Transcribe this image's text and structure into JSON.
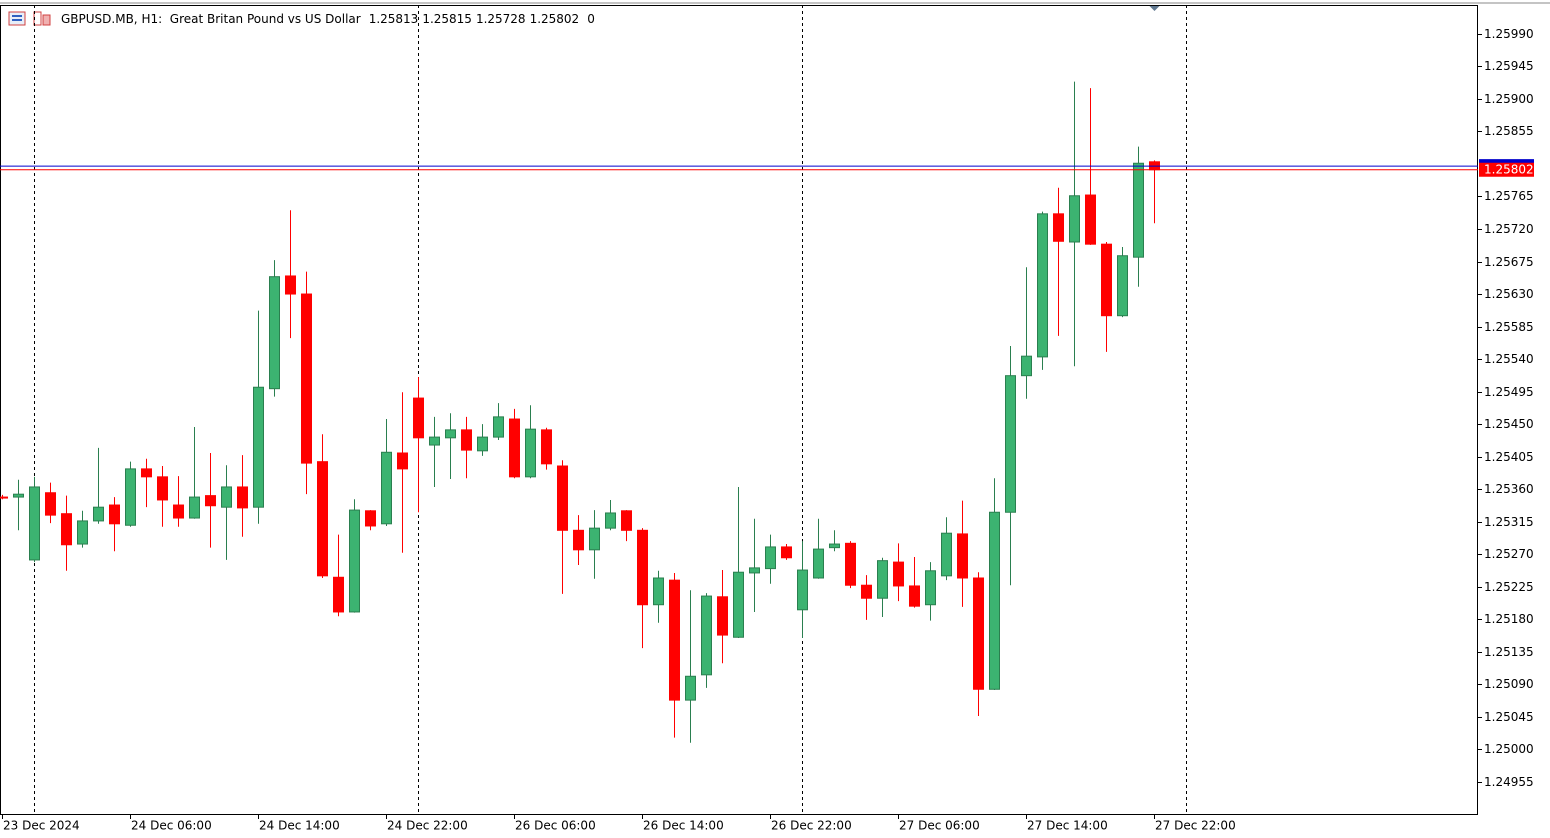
{
  "chart_data": {
    "type": "candlestick",
    "title": "GBPUSD.MB, H1:  Great Britan Pound vs US Dollar",
    "spread": 0,
    "categories": [
      "23 Dec 2024",
      null,
      null,
      null,
      null,
      null,
      null,
      null,
      "24 Dec 06:00",
      null,
      null,
      null,
      null,
      null,
      null,
      null,
      "24 Dec 14:00",
      null,
      null,
      null,
      null,
      null,
      null,
      null,
      "24 Dec 22:00",
      null,
      null,
      null,
      null,
      null,
      null,
      null,
      "26 Dec 06:00",
      null,
      null,
      null,
      null,
      null,
      null,
      null,
      "26 Dec 14:00",
      null,
      null,
      null,
      null,
      null,
      null,
      null,
      "26 Dec 22:00",
      null,
      null,
      null,
      null,
      null,
      null,
      null,
      "27 Dec 06:00",
      null,
      null,
      null,
      null,
      null,
      null,
      null,
      "27 Dec 14:00",
      null,
      null,
      null,
      null,
      null,
      null,
      null,
      "27 Dec 22:00"
    ],
    "open": [
      1.25349,
      1.25349,
      1.25262,
      1.25355,
      1.25326,
      1.25284,
      1.25316,
      1.25338,
      1.2531,
      1.25388,
      1.25377,
      1.25338,
      1.2532,
      1.25351,
      1.25335,
      1.25363,
      1.25335,
      1.25499,
      1.25655,
      1.2563,
      1.25398,
      1.25238,
      1.2519,
      1.2533,
      1.25312,
      1.2541,
      1.25486,
      1.25421,
      1.25431,
      1.25442,
      1.25413,
      1.25432,
      1.25457,
      1.25377,
      1.25442,
      1.25392,
      1.25303,
      1.25276,
      1.25306,
      1.2533,
      1.25303,
      1.252,
      1.25234,
      1.25068,
      1.25103,
      1.25211,
      1.25155,
      1.25244,
      1.2525,
      1.2528,
      1.25193,
      1.25237,
      1.25279,
      1.25285,
      1.25227,
      1.25209,
      1.25259,
      1.25226,
      1.252,
      1.2524,
      1.25298,
      1.25237,
      1.25083,
      1.25328,
      1.25517,
      1.25543,
      1.25741,
      1.25702,
      1.25767,
      1.25699,
      1.256,
      1.25681,
      1.25813
    ],
    "high": [
      1.25352,
      1.25373,
      1.25377,
      1.25369,
      1.25351,
      1.2533,
      1.25417,
      1.25349,
      1.25398,
      1.25402,
      1.25392,
      1.25378,
      1.25446,
      1.2541,
      1.25393,
      1.25407,
      1.25607,
      1.25677,
      1.25746,
      1.25661,
      1.25436,
      1.25297,
      1.25346,
      1.25331,
      1.25457,
      1.25494,
      1.25515,
      1.2546,
      1.25465,
      1.2546,
      1.2545,
      1.25479,
      1.25471,
      1.25476,
      1.25445,
      1.254,
      1.25324,
      1.25331,
      1.25345,
      1.25331,
      1.25306,
      1.25247,
      1.25244,
      1.2522,
      1.25216,
      1.25248,
      1.25363,
      1.25319,
      1.25297,
      1.25284,
      1.25288,
      1.25319,
      1.25303,
      1.25288,
      1.25241,
      1.25265,
      1.25285,
      1.25266,
      1.25259,
      1.25321,
      1.25344,
      1.25245,
      1.25375,
      1.25558,
      1.25667,
      1.25744,
      1.25777,
      1.25924,
      1.25915,
      1.25702,
      1.25695,
      1.25834,
      1.25815
    ],
    "low": [
      1.25346,
      1.25303,
      1.25259,
      1.25313,
      1.25247,
      1.25279,
      1.25312,
      1.25274,
      1.25308,
      1.25335,
      1.25308,
      1.25308,
      1.25319,
      1.25279,
      1.25262,
      1.25294,
      1.25312,
      1.25488,
      1.25569,
      1.25353,
      1.25237,
      1.25184,
      1.25189,
      1.25303,
      1.25309,
      1.25272,
      1.25328,
      1.25363,
      1.25374,
      1.25375,
      1.25406,
      1.25428,
      1.25375,
      1.25375,
      1.25387,
      1.25215,
      1.25255,
      1.25236,
      1.25303,
      1.25288,
      1.2514,
      1.25175,
      1.25016,
      1.25009,
      1.25085,
      1.25119,
      1.25154,
      1.2519,
      1.25229,
      1.25262,
      1.25154,
      1.25236,
      1.25274,
      1.25223,
      1.25179,
      1.25183,
      1.25205,
      1.25196,
      1.25178,
      1.25234,
      1.25197,
      1.25046,
      1.25082,
      1.25227,
      1.25485,
      1.25525,
      1.25572,
      1.2553,
      1.25698,
      1.2555,
      1.25598,
      1.2564,
      1.25728
    ],
    "close": [
      1.25348,
      1.25353,
      1.25363,
      1.25324,
      1.25283,
      1.25316,
      1.25335,
      1.25312,
      1.25388,
      1.25377,
      1.25345,
      1.2532,
      1.25349,
      1.25337,
      1.25363,
      1.25334,
      1.25501,
      1.25654,
      1.2563,
      1.25396,
      1.2524,
      1.2519,
      1.25331,
      1.25309,
      1.25411,
      1.25388,
      1.25431,
      1.25432,
      1.25442,
      1.25414,
      1.25432,
      1.2546,
      1.25377,
      1.25443,
      1.25395,
      1.25303,
      1.25276,
      1.25306,
      1.25327,
      1.25303,
      1.252,
      1.25237,
      1.25068,
      1.25101,
      1.25212,
      1.25158,
      1.25245,
      1.25251,
      1.2528,
      1.25265,
      1.25248,
      1.25277,
      1.25284,
      1.25227,
      1.25209,
      1.25261,
      1.25226,
      1.25198,
      1.25247,
      1.25299,
      1.25237,
      1.25083,
      1.25328,
      1.25517,
      1.25544,
      1.25741,
      1.25703,
      1.25766,
      1.25699,
      1.256,
      1.25683,
      1.25811,
      1.25802
    ],
    "ask_line": 1.25807,
    "up_color": "#3cb371",
    "down_color": "#ff0000",
    "ask_color": "#0000cc",
    "ylim": [
      1.24909,
      1.2603
    ],
    "yticks": [
      {
        "value": 1.2599,
        "label": "1.25990"
      },
      {
        "value": 1.25945,
        "label": "1.25945"
      },
      {
        "value": 1.259,
        "label": "1.25900"
      },
      {
        "value": 1.25855,
        "label": "1.25855"
      },
      {
        "value": 1.25765,
        "label": "1.25765"
      },
      {
        "value": 1.2572,
        "label": "1.25720"
      },
      {
        "value": 1.25675,
        "label": "1.25675"
      },
      {
        "value": 1.2563,
        "label": "1.25630"
      },
      {
        "value": 1.25585,
        "label": "1.25585"
      },
      {
        "value": 1.2554,
        "label": "1.25540"
      },
      {
        "value": 1.25495,
        "label": "1.25495"
      },
      {
        "value": 1.2545,
        "label": "1.25450"
      },
      {
        "value": 1.25405,
        "label": "1.25405"
      },
      {
        "value": 1.2536,
        "label": "1.25360"
      },
      {
        "value": 1.25315,
        "label": "1.25315"
      },
      {
        "value": 1.2527,
        "label": "1.25270"
      },
      {
        "value": 1.25225,
        "label": "1.25225"
      },
      {
        "value": 1.2518,
        "label": "1.25180"
      },
      {
        "value": 1.25135,
        "label": "1.25135"
      },
      {
        "value": 1.2509,
        "label": "1.25090"
      },
      {
        "value": 1.25045,
        "label": "1.25045"
      },
      {
        "value": 1.25,
        "label": "1.25000"
      },
      {
        "value": 1.24955,
        "label": "1.24955"
      }
    ],
    "grid": false
  }
}
